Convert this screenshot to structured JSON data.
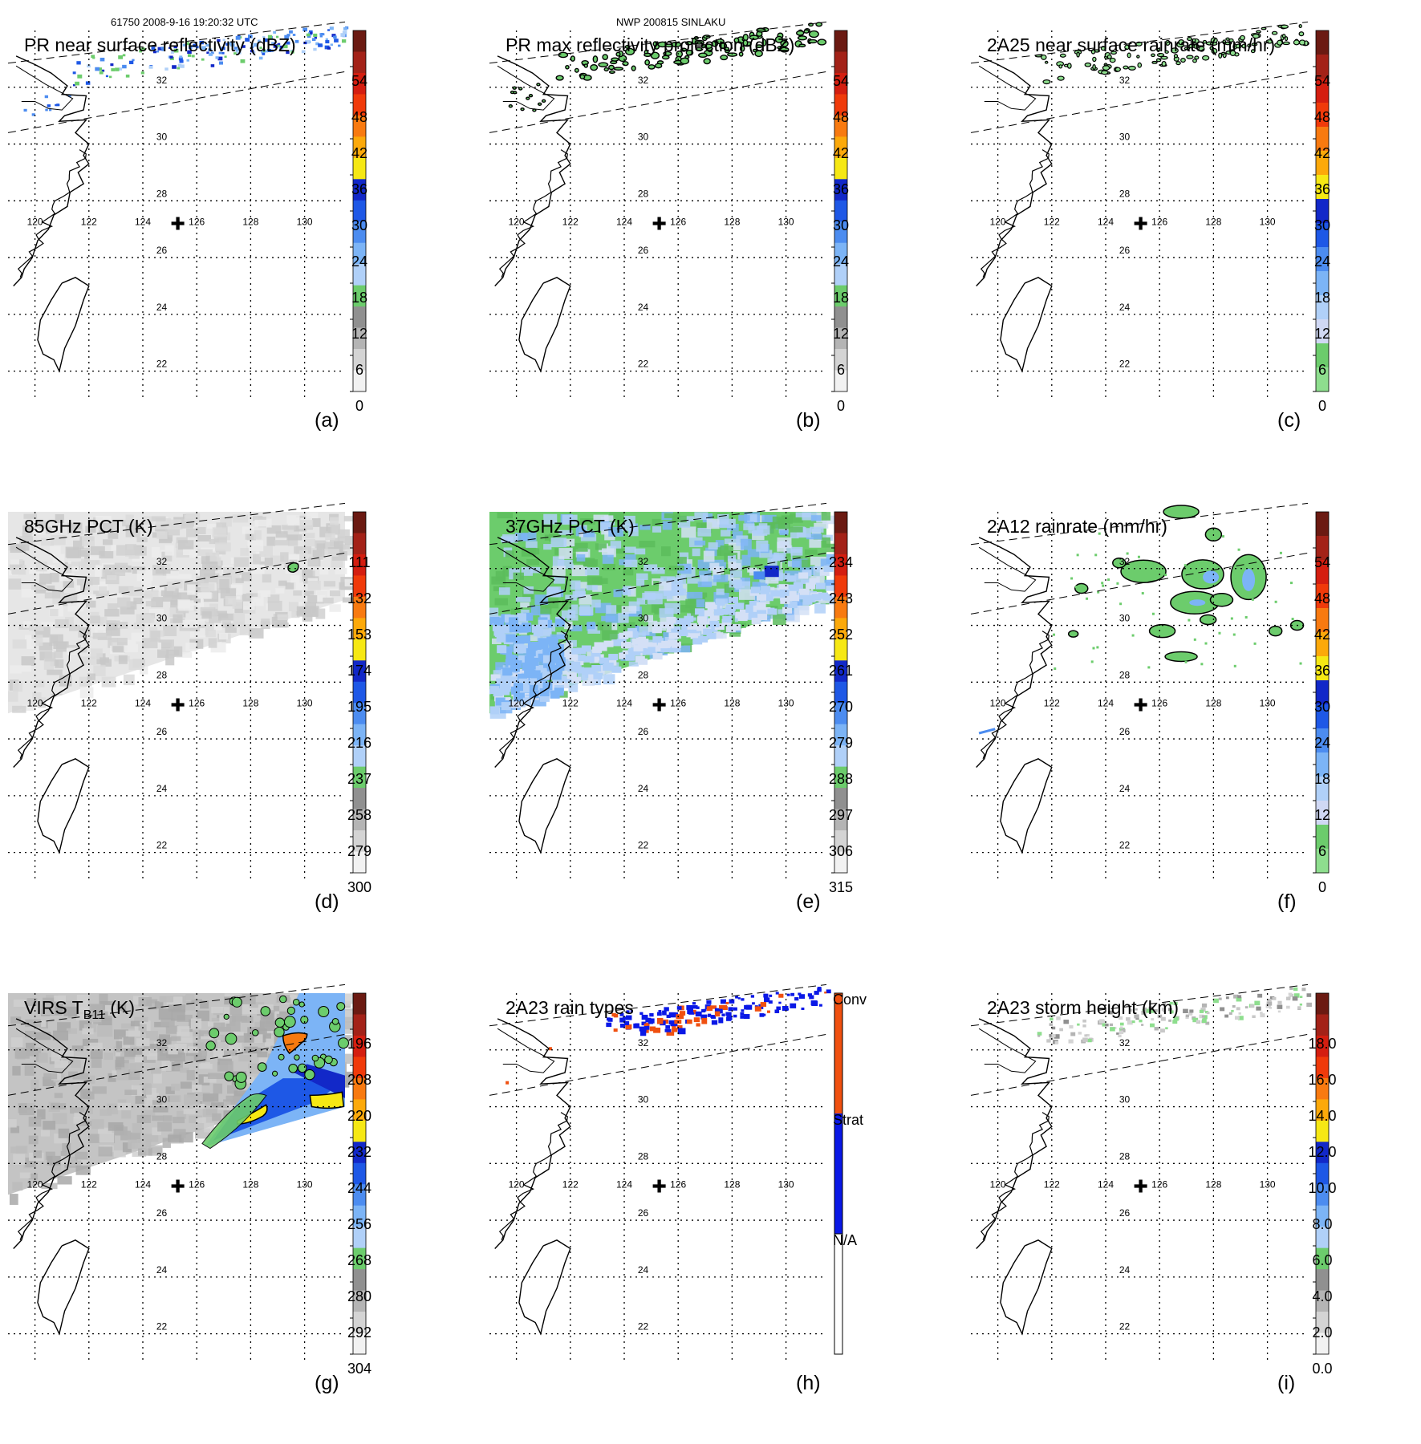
{
  "header": {
    "orbit_time": "61750 2008-9-16 19:20:32 UTC",
    "storm": "NWP 200815 SINLAKU"
  },
  "map": {
    "lon_labels": [
      "120",
      "122",
      "124",
      "126",
      "128",
      "130"
    ],
    "lat_labels": [
      "32",
      "30",
      "28",
      "26",
      "24",
      "22"
    ],
    "lon_values": [
      120,
      122,
      124,
      126,
      128,
      130
    ],
    "lat_values": [
      32,
      30,
      28,
      26,
      24,
      22
    ],
    "lon_range": [
      119,
      131.5
    ],
    "lat_range": [
      21,
      34
    ],
    "storm_center": {
      "lon": 125.3,
      "lat": 27.2,
      "symbol": "✚"
    }
  },
  "panels": [
    {
      "id": "a",
      "title": "PR near surface reflectivity (dBZ)",
      "label": "(a)",
      "field": "swath_pr_sparse",
      "colorbar": {
        "labels": [
          "54",
          "48",
          "42",
          "36",
          "30",
          "24",
          "18",
          "12",
          "6",
          "0"
        ],
        "colors": [
          "#6b1a12",
          "#a32218",
          "#d41e10",
          "#f03a0a",
          "#f87a10",
          "#fca90a",
          "#f6e814",
          "#1228c8",
          "#1e58e6",
          "#4c8cf0",
          "#7cb4f6",
          "#b0d0f8",
          "#6ccc6c",
          "#909090",
          "#b4b4b4",
          "#d4d4d4",
          "#f2f2f2"
        ]
      }
    },
    {
      "id": "b",
      "title": "PR max reflectivity projection (dBZ)",
      "label": "(b)",
      "field": "swath_pr_contours",
      "colorbar": {
        "labels": [
          "54",
          "48",
          "42",
          "36",
          "30",
          "24",
          "18",
          "12",
          "6",
          "0"
        ],
        "colors": [
          "#6b1a12",
          "#a32218",
          "#d41e10",
          "#f03a0a",
          "#f87a10",
          "#fca90a",
          "#f6e814",
          "#1228c8",
          "#1e58e6",
          "#4c8cf0",
          "#7cb4f6",
          "#b0d0f8",
          "#6ccc6c",
          "#909090",
          "#b4b4b4",
          "#d4d4d4",
          "#f2f2f2"
        ]
      }
    },
    {
      "id": "c",
      "title": "2A25 near surface rainrate (mm/hr)",
      "label": "(c)",
      "field": "swath_pr_green",
      "colorbar": {
        "labels": [
          "54",
          "48",
          "42",
          "36",
          "30",
          "24",
          "18",
          "12",
          "6",
          "0"
        ],
        "colors": [
          "#6b1a12",
          "#a32218",
          "#d41e10",
          "#f03a0a",
          "#f87a10",
          "#fca90a",
          "#f6e814",
          "#1228c8",
          "#1e58e6",
          "#4c8cf0",
          "#7cb4f6",
          "#b0d0f8",
          "#d0d8f4",
          "#6ccc6c",
          "#8ede8e"
        ]
      }
    },
    {
      "id": "d",
      "title": "85GHz PCT (K)",
      "label": "(d)",
      "field": "tmi_gray",
      "colorbar": {
        "labels": [
          "111",
          "132",
          "153",
          "174",
          "195",
          "216",
          "237",
          "258",
          "279",
          "300"
        ],
        "colors": [
          "#6b1a12",
          "#a32218",
          "#d41e10",
          "#f03a0a",
          "#f87a10",
          "#fca90a",
          "#f6e814",
          "#1228c8",
          "#1e58e6",
          "#4c8cf0",
          "#7cb4f6",
          "#b0d0f8",
          "#6ccc6c",
          "#909090",
          "#b4b4b4",
          "#d4d4d4",
          "#f2f2f2"
        ]
      }
    },
    {
      "id": "e",
      "title": "37GHz PCT (K)",
      "label": "(e)",
      "field": "tmi_green",
      "colorbar": {
        "labels": [
          "234",
          "243",
          "252",
          "261",
          "270",
          "279",
          "288",
          "297",
          "306",
          "315"
        ],
        "colors": [
          "#6b1a12",
          "#a32218",
          "#d41e10",
          "#f03a0a",
          "#f87a10",
          "#fca90a",
          "#f6e814",
          "#1228c8",
          "#1e58e6",
          "#4c8cf0",
          "#7cb4f6",
          "#b0d0f8",
          "#6ccc6c",
          "#909090",
          "#b4b4b4",
          "#d4d4d4",
          "#f2f2f2"
        ]
      }
    },
    {
      "id": "f",
      "title": "2A12 rainrate (mm/hr)",
      "label": "(f)",
      "field": "tmi_rain",
      "colorbar": {
        "labels": [
          "54",
          "48",
          "42",
          "36",
          "30",
          "24",
          "18",
          "12",
          "6",
          "0"
        ],
        "colors": [
          "#6b1a12",
          "#a32218",
          "#d41e10",
          "#f03a0a",
          "#f87a10",
          "#fca90a",
          "#f6e814",
          "#1228c8",
          "#1e58e6",
          "#4c8cf0",
          "#7cb4f6",
          "#b0d0f8",
          "#d0d8f4",
          "#6ccc6c",
          "#8ede8e"
        ]
      }
    },
    {
      "id": "g",
      "title": "VIRS T",
      "title_sub": "B11",
      "title_tail": " (K)",
      "label": "(g)",
      "field": "virs",
      "colorbar": {
        "labels": [
          "196",
          "208",
          "220",
          "232",
          "244",
          "256",
          "268",
          "280",
          "292",
          "304"
        ],
        "colors": [
          "#6b1a12",
          "#a32218",
          "#d41e10",
          "#f03a0a",
          "#f87a10",
          "#fca90a",
          "#f6e814",
          "#1228c8",
          "#1e58e6",
          "#4c8cf0",
          "#7cb4f6",
          "#b0d0f8",
          "#6ccc6c",
          "#909090",
          "#b4b4b4",
          "#d4d4d4",
          "#f2f2f2"
        ]
      }
    },
    {
      "id": "h",
      "title": "2A23 rain types",
      "label": "(h)",
      "field": "rain_types",
      "colorbar": {
        "labels": [
          "Conv",
          "Strat",
          "N/A"
        ],
        "colors": [
          "#f05010",
          "#0a18e6",
          "#ffffff"
        ]
      }
    },
    {
      "id": "i",
      "title": "2A23 storm height (km)",
      "label": "(i)",
      "field": "swath_gray",
      "colorbar": {
        "labels": [
          "18.0",
          "16.0",
          "14.0",
          "12.0",
          "10.0",
          "8.0",
          "6.0",
          "4.0",
          "2.0",
          "0.0"
        ],
        "colors": [
          "#6b1a12",
          "#a32218",
          "#d41e10",
          "#f03a0a",
          "#f87a10",
          "#fca90a",
          "#f6e814",
          "#1228c8",
          "#1e58e6",
          "#4c8cf0",
          "#7cb4f6",
          "#b0d0f8",
          "#6ccc6c",
          "#909090",
          "#b4b4b4",
          "#d4d4d4",
          "#f2f2f2"
        ]
      }
    }
  ],
  "coastlines": {
    "mainland": [
      [
        119.3,
        33.1
      ],
      [
        120.0,
        32.8
      ],
      [
        120.6,
        32.5
      ],
      [
        121.2,
        32.05
      ],
      [
        121.0,
        31.75
      ],
      [
        121.9,
        31.7
      ],
      [
        121.8,
        31.2
      ],
      [
        121.1,
        31.0
      ],
      [
        120.9,
        30.8
      ],
      [
        121.9,
        30.85
      ],
      [
        121.5,
        30.4
      ],
      [
        122.0,
        30.0
      ],
      [
        121.8,
        29.6
      ],
      [
        122.0,
        29.3
      ],
      [
        121.6,
        29.0
      ],
      [
        121.8,
        28.6
      ],
      [
        121.3,
        28.3
      ],
      [
        121.2,
        27.8
      ],
      [
        120.7,
        27.5
      ],
      [
        120.5,
        27.0
      ],
      [
        120.1,
        26.6
      ],
      [
        119.9,
        26.0
      ],
      [
        119.6,
        25.6
      ],
      [
        119.5,
        25.3
      ],
      [
        119.2,
        25.0
      ]
    ],
    "taiwan": [
      [
        121.0,
        25.1
      ],
      [
        121.5,
        25.3
      ],
      [
        122.0,
        25.0
      ],
      [
        121.8,
        24.5
      ],
      [
        121.5,
        23.6
      ],
      [
        121.1,
        22.8
      ],
      [
        120.9,
        22.0
      ],
      [
        120.7,
        22.4
      ],
      [
        120.3,
        22.6
      ],
      [
        120.1,
        23.1
      ],
      [
        120.2,
        23.8
      ],
      [
        120.6,
        24.5
      ],
      [
        121.0,
        25.1
      ]
    ]
  }
}
